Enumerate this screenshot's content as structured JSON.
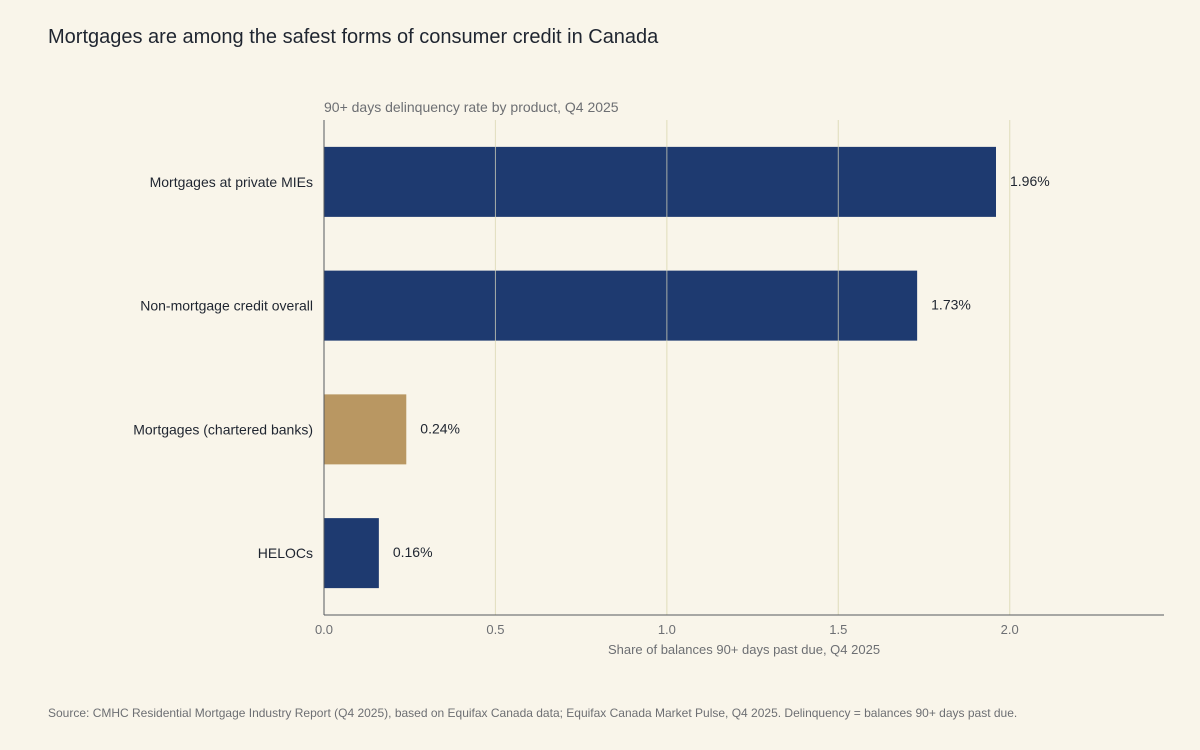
{
  "title": "Mortgages are among the safest forms of consumer credit in Canada",
  "source": "Source: CMHC Residential Mortgage Industry Report (Q4 2025), based on Equifax Canada data; Equifax Canada Market Pulse, Q4 2025. Delinquency = balances 90+ days past due.",
  "chart_data": {
    "type": "bar",
    "orientation": "horizontal",
    "subtitle": "90+ days delinquency rate by product, Q4 2025",
    "xlabel": "Share of balances 90+ days past due, Q4 2025",
    "ylabel": "",
    "xlim": [
      0,
      2.45
    ],
    "xticks": [
      0.0,
      0.5,
      1.0,
      1.5,
      2.0
    ],
    "xtick_labels": [
      "0.0",
      "0.5",
      "1.0",
      "1.5",
      "2.0"
    ],
    "grid": "vertical",
    "categories": [
      "Mortgages at private MIEs",
      "Non-mortgage credit overall",
      "Mortgages (chartered banks)",
      "HELOCs"
    ],
    "values": [
      1.96,
      1.73,
      0.24,
      0.16
    ],
    "value_labels": [
      "1.96%",
      "1.73%",
      "0.24%",
      "0.16%"
    ],
    "colors": [
      "#1e3a70",
      "#1e3a70",
      "#b99762",
      "#1e3a70"
    ]
  }
}
